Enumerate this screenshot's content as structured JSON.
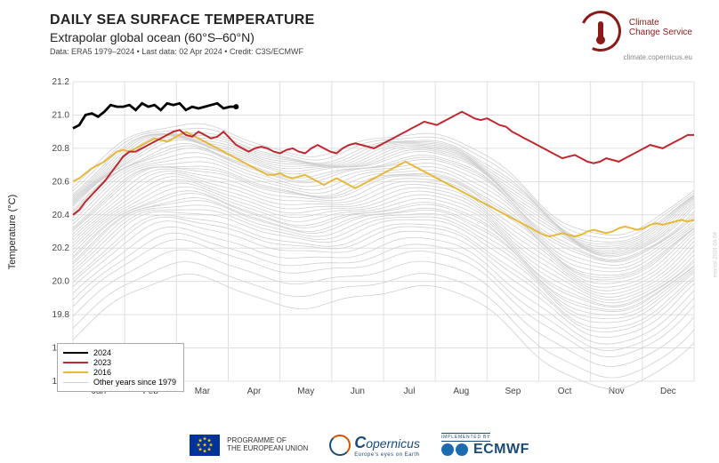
{
  "header": {
    "title": "DAILY SEA SURFACE TEMPERATURE",
    "subtitle": "Extrapolar global ocean (60°S–60°N)",
    "meta": "Data: ERA5 1979–2024  •  Last data: 02 Apr 2024  •  Credit: C3S/ECMWF"
  },
  "logo": {
    "name_line1": "Climate",
    "name_line2": "Change Service",
    "url": "climate.copernicus.eu"
  },
  "chart": {
    "type": "line",
    "ylabel": "Temperature (°C)",
    "ylim": [
      19.4,
      21.2
    ],
    "ytick_step": 0.2,
    "months": [
      "Jan",
      "Feb",
      "Mar",
      "Apr",
      "May",
      "Jun",
      "Jul",
      "Aug",
      "Sep",
      "Oct",
      "Nov",
      "Dec"
    ],
    "background_color": "#ffffff",
    "grid_color": "#e0e0e0",
    "colors": {
      "2024": "#000000",
      "2023": "#c0282f",
      "2016": "#e8b83b",
      "other": "#d0d0d0"
    },
    "line_widths": {
      "2024": 2.8,
      "2023": 2.0,
      "2016": 2.0,
      "other": 0.8
    },
    "legend": {
      "position": "lower-left",
      "items": [
        {
          "label": "2024",
          "color": "#000000",
          "w": 2.8
        },
        {
          "label": "2023",
          "color": "#c0282f",
          "w": 2
        },
        {
          "label": "2016",
          "color": "#e8b83b",
          "w": 2
        },
        {
          "label": "Other years since 1979",
          "color": "#d0d0d0",
          "w": 1
        }
      ]
    },
    "series_2024": [
      20.92,
      20.94,
      21.0,
      21.01,
      20.99,
      21.02,
      21.06,
      21.05,
      21.05,
      21.06,
      21.03,
      21.07,
      21.05,
      21.06,
      21.03,
      21.07,
      21.06,
      21.07,
      21.03,
      21.05,
      21.04,
      21.05,
      21.06,
      21.07,
      21.04,
      21.05,
      21.05
    ],
    "series_2023": [
      20.4,
      20.43,
      20.48,
      20.52,
      20.56,
      20.6,
      20.65,
      20.7,
      20.75,
      20.78,
      20.78,
      20.8,
      20.82,
      20.84,
      20.86,
      20.88,
      20.9,
      20.91,
      20.88,
      20.87,
      20.9,
      20.88,
      20.86,
      20.87,
      20.9,
      20.86,
      20.82,
      20.8,
      20.78,
      20.8,
      20.81,
      20.8,
      20.78,
      20.77,
      20.79,
      20.8,
      20.78,
      20.77,
      20.8,
      20.82,
      20.8,
      20.78,
      20.77,
      20.8,
      20.82,
      20.83,
      20.82,
      20.81,
      20.8,
      20.82,
      20.84,
      20.86,
      20.88,
      20.9,
      20.92,
      20.94,
      20.96,
      20.95,
      20.94,
      20.96,
      20.98,
      21.0,
      21.02,
      21.0,
      20.98,
      20.97,
      20.98,
      20.96,
      20.94,
      20.93,
      20.9,
      20.88,
      20.86,
      20.84,
      20.82,
      20.8,
      20.78,
      20.76,
      20.74,
      20.75,
      20.76,
      20.74,
      20.72,
      20.71,
      20.72,
      20.74,
      20.73,
      20.72,
      20.74,
      20.76,
      20.78,
      20.8,
      20.82,
      20.81,
      20.8,
      20.82,
      20.84,
      20.86,
      20.88,
      20.88
    ],
    "series_2016": [
      20.6,
      20.62,
      20.65,
      20.68,
      20.7,
      20.72,
      20.75,
      20.78,
      20.79,
      20.78,
      20.8,
      20.82,
      20.84,
      20.86,
      20.85,
      20.84,
      20.86,
      20.88,
      20.9,
      20.88,
      20.86,
      20.84,
      20.82,
      20.8,
      20.78,
      20.76,
      20.74,
      20.72,
      20.7,
      20.68,
      20.66,
      20.64,
      20.64,
      20.65,
      20.63,
      20.62,
      20.63,
      20.64,
      20.62,
      20.6,
      20.58,
      20.6,
      20.62,
      20.6,
      20.58,
      20.56,
      20.58,
      20.6,
      20.62,
      20.64,
      20.66,
      20.68,
      20.7,
      20.72,
      20.7,
      20.68,
      20.66,
      20.64,
      20.62,
      20.6,
      20.58,
      20.56,
      20.54,
      20.52,
      20.5,
      20.48,
      20.46,
      20.44,
      20.42,
      20.4,
      20.38,
      20.36,
      20.34,
      20.32,
      20.3,
      20.28,
      20.27,
      20.28,
      20.29,
      20.28,
      20.27,
      20.28,
      20.3,
      20.31,
      20.3,
      20.29,
      20.3,
      20.32,
      20.33,
      20.32,
      20.31,
      20.32,
      20.34,
      20.35,
      20.34,
      20.35,
      20.36,
      20.37,
      20.36,
      20.37
    ],
    "other_base_starts": [
      19.78,
      19.85,
      19.92,
      19.98,
      20.02,
      20.06,
      20.1,
      20.13,
      20.15,
      20.18,
      20.2,
      20.22,
      20.24,
      20.25,
      20.27,
      20.28,
      20.3,
      20.32,
      20.34,
      20.36,
      20.38,
      20.4,
      20.42,
      20.44,
      20.45,
      20.46,
      20.48,
      20.5,
      20.52,
      20.54,
      20.55,
      20.56,
      20.58,
      20.59,
      20.6,
      20.61,
      20.62,
      20.63,
      20.64,
      20.65,
      20.66,
      20.68,
      20.7
    ]
  },
  "footer": {
    "eu_line1": "PROGRAMME OF",
    "eu_line2": "THE EUROPEAN UNION",
    "copernicus": "opernicus",
    "copernicus_sub": "Europe's eyes on Earth",
    "ecmwf_impl": "IMPLEMENTED BY",
    "ecmwf": "ECMWF"
  },
  "side_credit": "esa/sst 2024-04-04"
}
